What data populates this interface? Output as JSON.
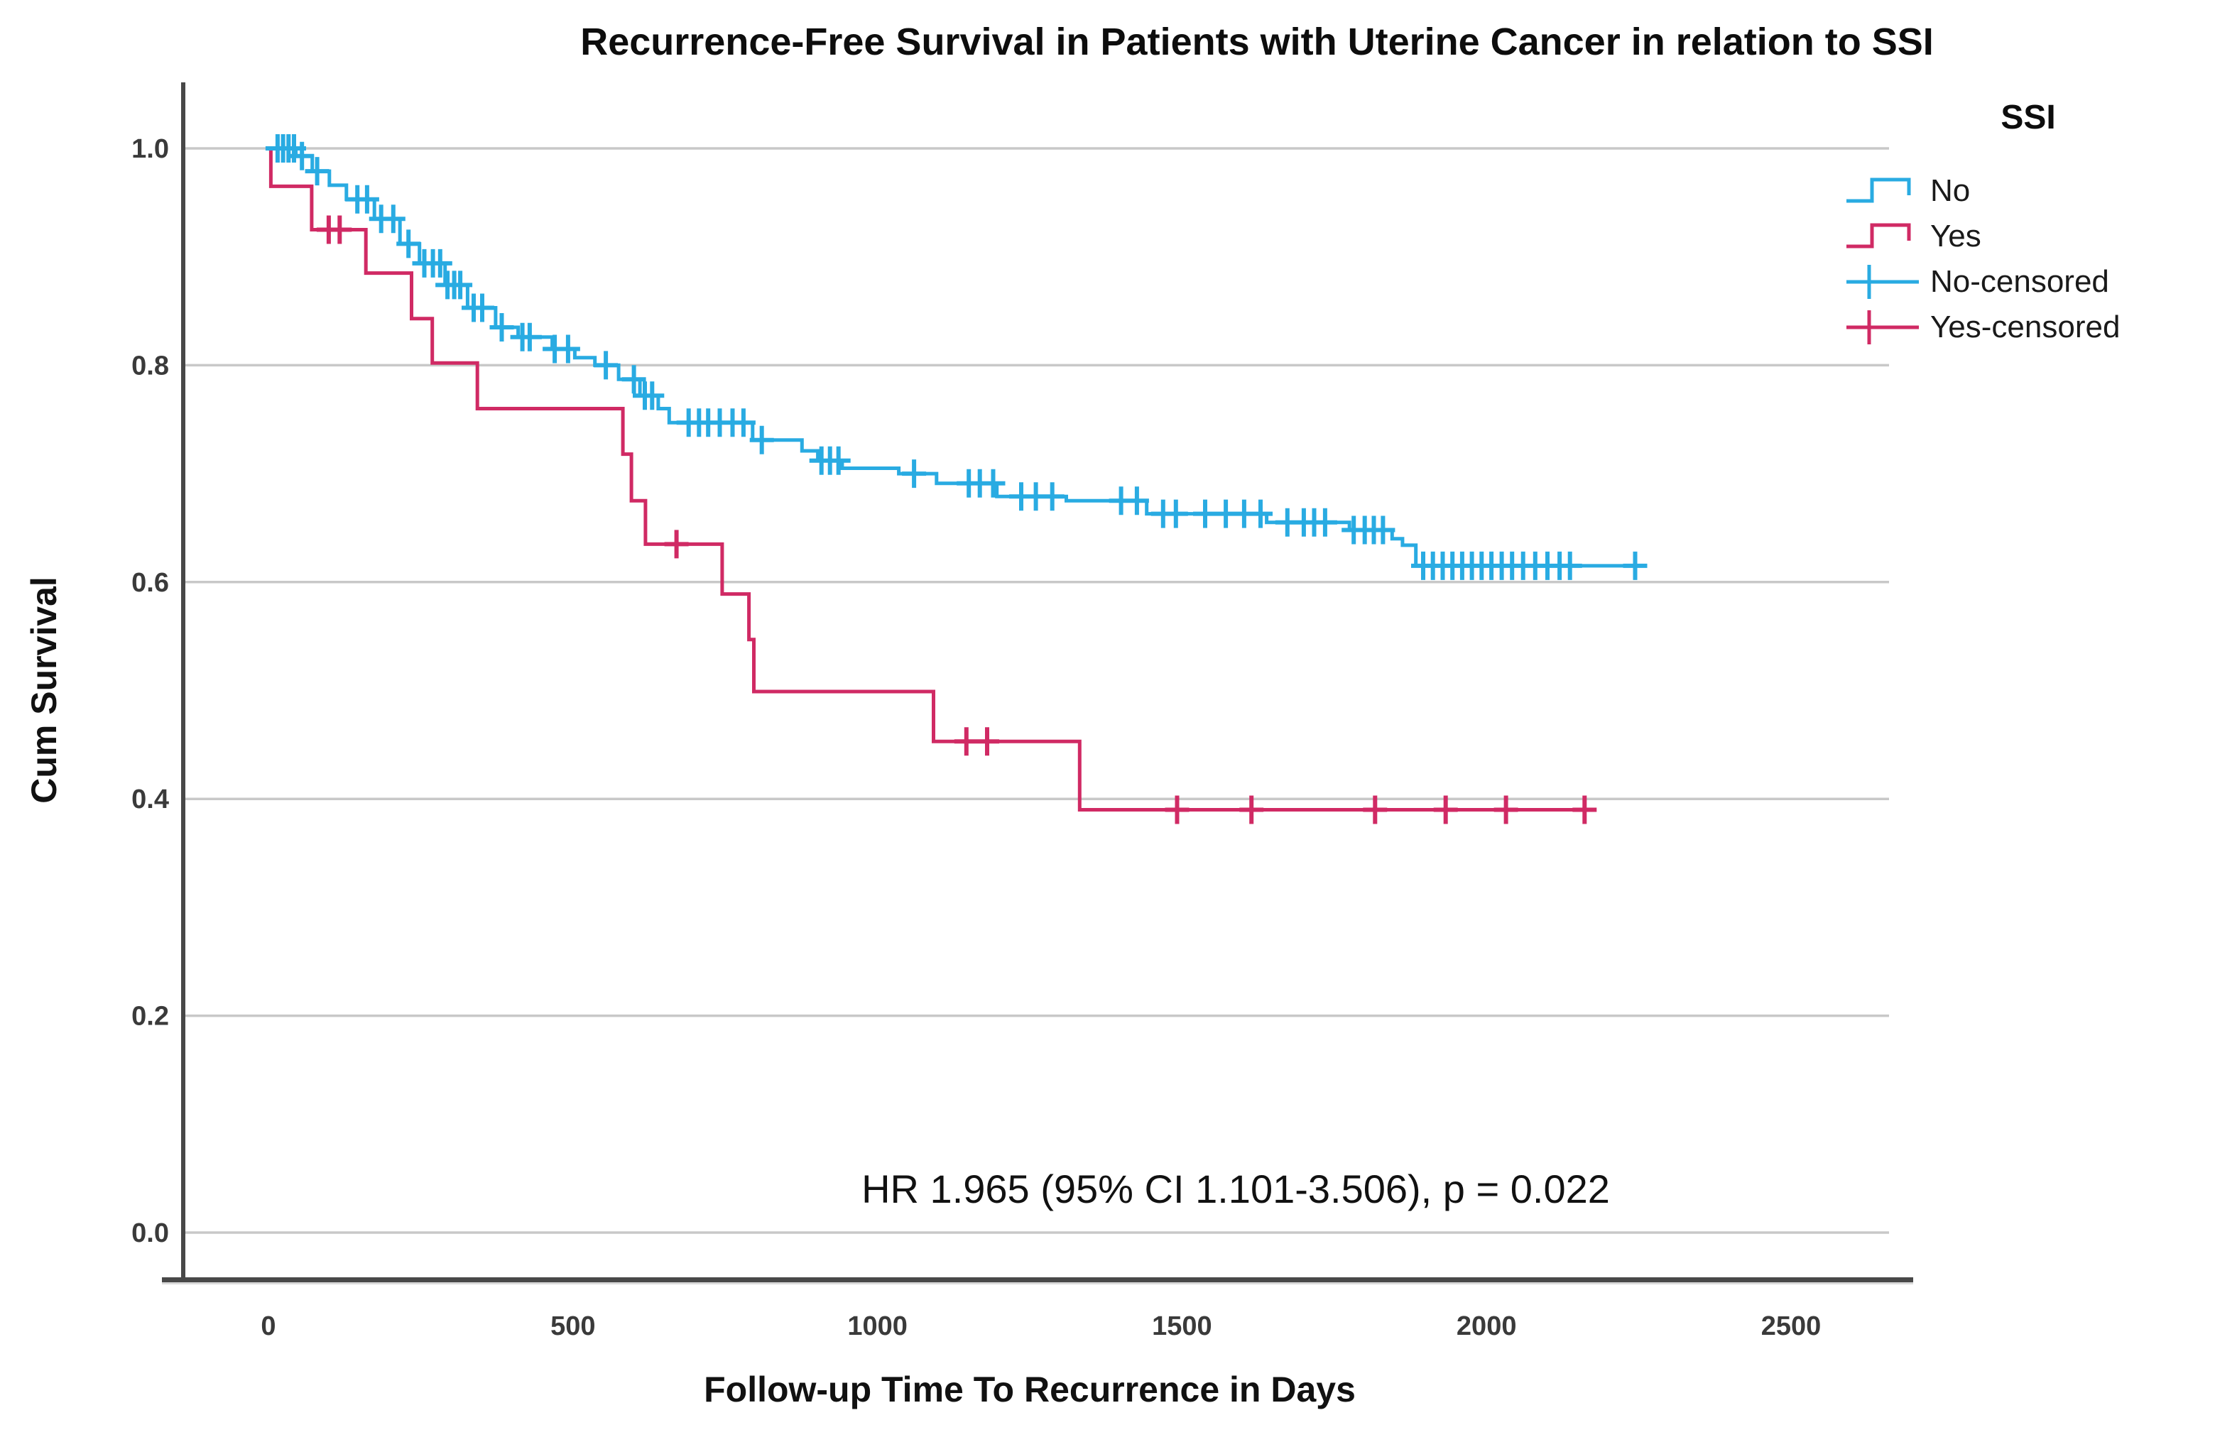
{
  "chart_data": {
    "type": "line",
    "chart_kind": "kaplan-meier-step-survival",
    "title": "Recurrence-Free Survival in Patients with Uterine Cancer in relation to SSI",
    "xlabel": "Follow-up Time To Recurrence in Days",
    "ylabel": "Cum Survival",
    "annotation": "HR 1.965 (95% CI 1.101-3.506), p = 0.022",
    "xlim": [
      0,
      2500
    ],
    "ylim": [
      0.0,
      1.0
    ],
    "xticks": [
      "0",
      "500",
      "1000",
      "1500",
      "2000",
      "2500"
    ],
    "yticks": [
      "0.0",
      "0.2",
      "0.4",
      "0.6",
      "0.8",
      "1.0"
    ],
    "grid": "horizontal-only",
    "legend": {
      "title": "SSI",
      "position": "top-right",
      "entries": [
        {
          "label": "No",
          "type": "line",
          "color": "#29ABE2"
        },
        {
          "label": "Yes",
          "type": "line",
          "color": "#D02A64"
        },
        {
          "label": "No-censored",
          "type": "censor",
          "color": "#29ABE2"
        },
        {
          "label": "Yes-censored",
          "type": "censor",
          "color": "#D02A64"
        }
      ]
    },
    "series": [
      {
        "name": "Yes",
        "color": "#D02A64",
        "end": 2180,
        "steps": [
          [
            0,
            1.0
          ],
          [
            4,
            0.965
          ],
          [
            71,
            0.925
          ],
          [
            160,
            0.885
          ],
          [
            235,
            0.843
          ],
          [
            269,
            0.802
          ],
          [
            343,
            0.76
          ],
          [
            582,
            0.718
          ],
          [
            596,
            0.675
          ],
          [
            619,
            0.635
          ],
          [
            745,
            0.589
          ],
          [
            789,
            0.547
          ],
          [
            797,
            0.499
          ],
          [
            1092,
            0.453
          ],
          [
            1332,
            0.39
          ]
        ],
        "censored": [
          99,
          117,
          670,
          1146,
          1180,
          1492,
          1614,
          1817,
          1933,
          2032,
          2161
        ]
      },
      {
        "name": "No",
        "color": "#29ABE2",
        "end": 2258,
        "steps": [
          [
            0,
            1.0
          ],
          [
            45,
            0.993
          ],
          [
            72,
            0.979
          ],
          [
            100,
            0.966
          ],
          [
            128,
            0.953
          ],
          [
            174,
            0.935
          ],
          [
            216,
            0.912
          ],
          [
            248,
            0.894
          ],
          [
            290,
            0.874
          ],
          [
            327,
            0.853
          ],
          [
            373,
            0.835
          ],
          [
            410,
            0.826
          ],
          [
            466,
            0.815
          ],
          [
            503,
            0.807
          ],
          [
            536,
            0.8
          ],
          [
            575,
            0.787
          ],
          [
            610,
            0.772
          ],
          [
            640,
            0.76
          ],
          [
            658,
            0.747
          ],
          [
            795,
            0.731
          ],
          [
            876,
            0.721
          ],
          [
            902,
            0.712
          ],
          [
            942,
            0.705
          ],
          [
            1035,
            0.7
          ],
          [
            1097,
            0.691
          ],
          [
            1196,
            0.679
          ],
          [
            1310,
            0.675
          ],
          [
            1442,
            0.663
          ],
          [
            1639,
            0.655
          ],
          [
            1775,
            0.648
          ],
          [
            1845,
            0.64
          ],
          [
            1862,
            0.634
          ],
          [
            1884,
            0.615
          ]
        ],
        "censored": [
          15,
          24,
          33,
          42,
          55,
          80,
          146,
          162,
          185,
          205,
          230,
          256,
          270,
          282,
          294,
          305,
          315,
          337,
          351,
          383,
          417,
          429,
          470,
          492,
          554,
          600,
          618,
          630,
          690,
          707,
          722,
          741,
          762,
          780,
          810,
          908,
          922,
          936,
          1060,
          1150,
          1168,
          1190,
          1236,
          1260,
          1287,
          1400,
          1426,
          1469,
          1490,
          1538,
          1572,
          1602,
          1629,
          1673,
          1700,
          1717,
          1735,
          1782,
          1800,
          1815,
          1830,
          1896,
          1912,
          1928,
          1944,
          1960,
          1976,
          1992,
          2008,
          2025,
          2042,
          2060,
          2080,
          2100,
          2120,
          2137,
          2244
        ]
      }
    ],
    "colors": {
      "grid": "#C8C8C8",
      "spine": "#484848",
      "spine_light": "#DADADA",
      "tick_text": "#3A3A3A",
      "text": "#111111",
      "background": "#FFFFFF"
    }
  }
}
